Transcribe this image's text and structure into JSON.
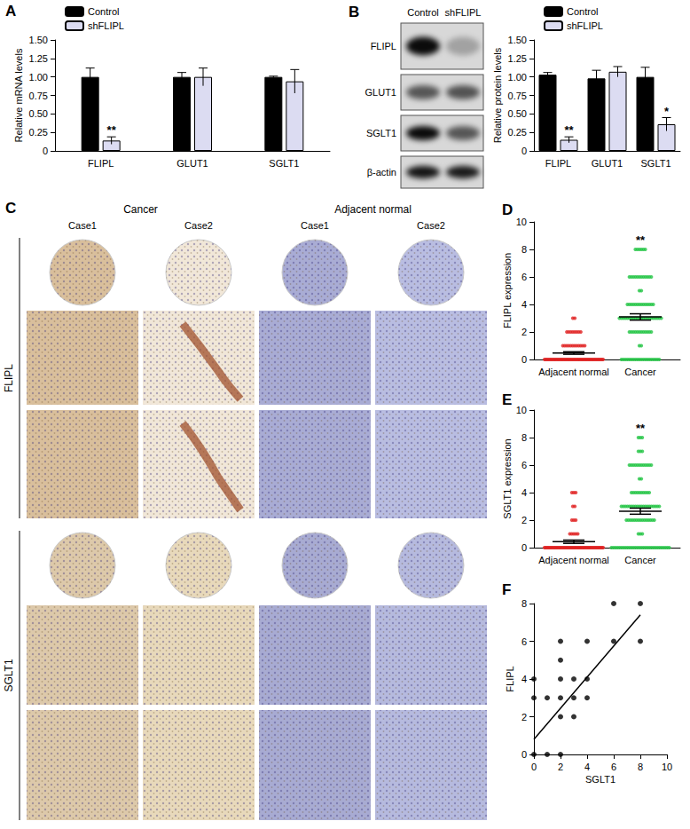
{
  "chart_data": [
    {
      "panel": "A",
      "type": "bar",
      "categories": [
        "FLIPL",
        "GLUT1",
        "SGLT1"
      ],
      "y_label": "Relative mRNA levels",
      "ylim": [
        0,
        1.5
      ],
      "yticks": [
        0,
        0.25,
        {
          "value": 0.5,
          "label": "0.50"
        },
        0.75,
        {
          "value": 1,
          "label": "1.00"
        },
        1.25,
        {
          "value": 1.5,
          "label": "1.50"
        }
      ],
      "legend": "top-left",
      "series": [
        {
          "name": "Control",
          "color": "#000000",
          "values": [
            1.0,
            1.0,
            1.0
          ],
          "errors": [
            0.12,
            0.06,
            0.01
          ]
        },
        {
          "name": "shFLIPL",
          "color": "#dcdcf2",
          "values": [
            0.14,
            1.0,
            0.94
          ],
          "errors": [
            0.05,
            0.12,
            0.16
          ]
        }
      ],
      "annotations": [
        {
          "category": "FLIPL",
          "series": "shFLIPL",
          "text": "**"
        }
      ]
    },
    {
      "type": "bar",
      "categories": [
        "FLIPL",
        "GLUT1",
        "SGLT1"
      ],
      "y_label": "Relative protein levels",
      "ylim": [
        0,
        1.5
      ],
      "yticks": [
        0,
        0.25,
        {
          "value": 0.5,
          "label": "0.50"
        },
        0.75,
        {
          "value": 1,
          "label": "1.00"
        },
        1.25,
        {
          "value": 1.5,
          "label": "1.50"
        }
      ],
      "legend": "top-left",
      "series": [
        {
          "name": "Control",
          "color": "#000000",
          "values": [
            1.03,
            0.98,
            1.0
          ],
          "errors": [
            0.03,
            0.11,
            0.13
          ]
        },
        {
          "name": "shFLIPL",
          "color": "#dcdcf2",
          "values": [
            0.15,
            1.07,
            0.36
          ],
          "errors": [
            0.04,
            0.07,
            0.09
          ]
        }
      ],
      "annotations": [
        {
          "category": "FLIPL",
          "series": "shFLIPL",
          "text": "**"
        },
        {
          "category": "SGLT1",
          "series": "shFLIPL",
          "text": "*"
        }
      ]
    },
    {
      "panel": "D",
      "type": "scatter",
      "categories": [
        "Adjacent normal",
        "Cancer"
      ],
      "y_label": "FLIPL expression",
      "ylim": [
        0,
        10
      ],
      "yticks": [
        0,
        2,
        4,
        6,
        8,
        10
      ],
      "colors": [
        "#e02020",
        "#22c444"
      ],
      "values": [
        [
          0,
          0,
          0,
          0,
          0,
          0,
          0,
          0,
          0,
          0,
          0,
          0,
          0,
          0,
          0,
          0,
          0,
          0,
          0,
          0,
          0,
          0,
          0,
          0,
          0,
          0,
          0,
          0,
          0,
          0,
          0,
          0,
          0,
          0,
          0,
          0,
          0,
          0,
          0,
          0,
          0,
          0,
          0,
          0,
          0,
          0,
          0,
          0,
          0,
          0,
          1,
          1,
          1,
          1,
          1,
          1,
          1,
          1,
          1,
          1,
          1,
          1,
          2,
          2,
          2,
          2,
          2,
          2,
          2,
          2,
          3,
          3
        ],
        [
          0,
          0,
          0,
          0,
          0,
          0,
          0,
          0,
          0,
          0,
          0,
          0,
          0,
          0,
          0,
          0,
          0,
          0,
          0,
          0,
          1,
          1,
          2,
          2,
          2,
          2,
          2,
          2,
          2,
          2,
          2,
          2,
          2,
          2,
          3,
          3,
          3,
          3,
          3,
          3,
          3,
          3,
          3,
          3,
          3,
          3,
          3,
          3,
          3,
          3,
          3,
          3,
          3,
          3,
          3,
          3,
          4,
          4,
          4,
          4,
          4,
          4,
          4,
          4,
          4,
          4,
          4,
          4,
          4,
          4,
          5,
          5,
          6,
          6,
          6,
          6,
          6,
          6,
          6,
          6,
          6,
          6,
          6,
          6,
          8,
          8,
          8,
          8,
          8,
          8
        ]
      ],
      "means": [
        0.47,
        3.09
      ],
      "sems": [
        0.09,
        0.23
      ],
      "annotations": [
        {
          "category": "Cancer",
          "text": "**"
        }
      ]
    },
    {
      "panel": "E",
      "type": "scatter",
      "categories": [
        "Adjacent normal",
        "Cancer"
      ],
      "y_label": "SGLT1 expression",
      "ylim": [
        0,
        10
      ],
      "yticks": [
        0,
        2,
        4,
        6,
        8,
        10
      ],
      "colors": [
        "#e02020",
        "#22c444"
      ],
      "values": [
        [
          0,
          0,
          0,
          0,
          0,
          0,
          0,
          0,
          0,
          0,
          0,
          0,
          0,
          0,
          0,
          0,
          0,
          0,
          0,
          0,
          0,
          0,
          0,
          0,
          0,
          0,
          0,
          0,
          0,
          0,
          0,
          0,
          0,
          0,
          0,
          0,
          0,
          0,
          0,
          0,
          0,
          0,
          0,
          0,
          0,
          0,
          0,
          0,
          0,
          0,
          0,
          0,
          0,
          0,
          0,
          1,
          1,
          1,
          1,
          1,
          2,
          2,
          2,
          3,
          3,
          4,
          4,
          4
        ],
        [
          0,
          0,
          0,
          0,
          0,
          0,
          0,
          0,
          0,
          0,
          0,
          0,
          0,
          0,
          0,
          0,
          0,
          0,
          0,
          0,
          0,
          0,
          0,
          0,
          0,
          0,
          0,
          0,
          0,
          0,
          1,
          1,
          1,
          2,
          2,
          2,
          2,
          2,
          2,
          2,
          2,
          2,
          2,
          2,
          2,
          2,
          2,
          2,
          3,
          3,
          3,
          3,
          3,
          3,
          3,
          3,
          3,
          3,
          3,
          3,
          3,
          3,
          3,
          3,
          3,
          3,
          3,
          3,
          4,
          4,
          4,
          4,
          4,
          4,
          4,
          4,
          4,
          4,
          5,
          5,
          6,
          6,
          6,
          6,
          6,
          6,
          6,
          6,
          6,
          6,
          6,
          6,
          7,
          7,
          7,
          8,
          8,
          8
        ]
      ],
      "means": [
        0.43,
        2.65
      ],
      "sems": [
        0.12,
        0.22
      ],
      "annotations": [
        {
          "category": "Cancer",
          "text": "**"
        }
      ]
    },
    {
      "panel": "F",
      "type": "scatter",
      "x_label": "SGLT1",
      "y_label": "FLIPL",
      "xlim": [
        0,
        10
      ],
      "xticks": [
        0,
        2,
        4,
        6,
        8,
        10
      ],
      "ylim": [
        0,
        8
      ],
      "yticks": [
        0,
        2,
        4,
        6,
        8
      ],
      "color": "#000000",
      "x": [
        0,
        0,
        0,
        1,
        1,
        2,
        2,
        2,
        2,
        2,
        2,
        3,
        3,
        3,
        4,
        4,
        4,
        6,
        6,
        8,
        8
      ],
      "y": [
        4,
        3,
        0,
        3,
        0,
        6,
        5,
        4,
        3,
        2,
        0,
        3,
        4,
        2,
        4,
        6,
        3,
        6,
        8,
        8,
        6
      ],
      "fit": {
        "x": [
          0,
          8
        ],
        "y": [
          0.8,
          7.4
        ]
      }
    }
  ],
  "blot": {
    "panel": "B",
    "columns": [
      "Control",
      "shFLIPL"
    ],
    "rows": [
      "FLIPL",
      "GLUT1",
      "SGLT1",
      "β-actin"
    ]
  },
  "ihc": {
    "panel": "C",
    "groups": [
      "Cancer",
      "Adjacent normal"
    ],
    "cases": [
      "Case1",
      "Case2",
      "Case1",
      "Case2"
    ],
    "rows": [
      "FLIPL",
      "SGLT1"
    ]
  }
}
